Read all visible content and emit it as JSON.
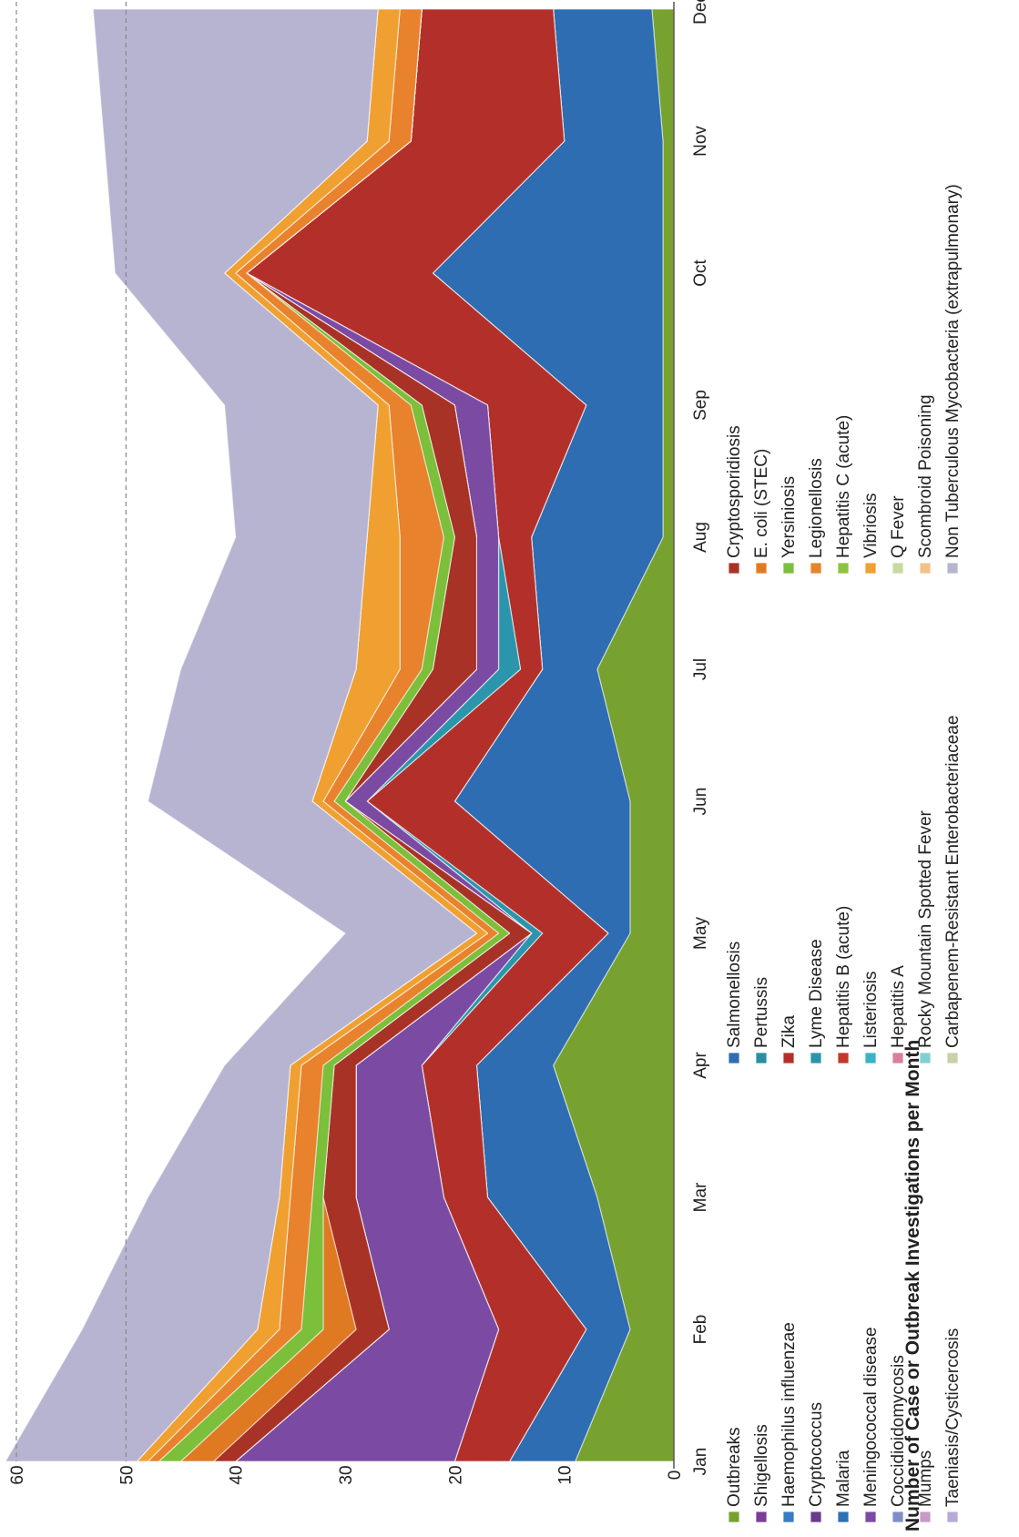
{
  "chart_data": {
    "type": "area",
    "stacked": true,
    "orientation": "rotated-90-clockwise",
    "title": "",
    "ylabel": "Number of Case or Outbreak Investigations per Month",
    "xlabel": "",
    "categories": [
      "Jan",
      "Feb",
      "Mar",
      "Apr",
      "May",
      "Jun",
      "Jul",
      "Aug",
      "Sep",
      "Oct",
      "Nov",
      "Dec"
    ],
    "ylim": [
      0,
      60
    ],
    "yticks": [
      0,
      10,
      20,
      30,
      40,
      50,
      60
    ],
    "gridlines": {
      "style": "dashed",
      "values": [
        50,
        60
      ]
    },
    "legend_position": "bottom",
    "series": [
      {
        "name": "Outbreaks",
        "color": "#78a22f",
        "values": [
          9,
          4,
          7,
          11,
          4,
          4,
          7,
          1,
          1,
          1,
          1,
          2
        ]
      },
      {
        "name": "Salmonellosis",
        "color": "#2e6db2",
        "values": [
          6,
          4,
          10,
          7,
          2,
          16,
          5,
          12,
          7,
          21,
          9,
          9
        ]
      },
      {
        "name": "Shigellosis",
        "color": "#7a3d96",
        "values": [
          0,
          0,
          0,
          0,
          0,
          0,
          0,
          0,
          0,
          0,
          0,
          0
        ]
      },
      {
        "name": "Pertussis",
        "color": "#2a8fa0",
        "values": [
          0,
          0,
          0,
          0,
          0,
          0,
          0,
          0,
          0,
          0,
          0,
          0
        ]
      },
      {
        "name": "Haemophilus influenzae",
        "color": "#3a7cc4",
        "values": [
          0,
          0,
          0,
          0,
          0,
          0,
          0,
          0,
          0,
          0,
          0,
          0
        ]
      },
      {
        "name": "Zika",
        "color": "#b3302a",
        "values": [
          5,
          8,
          4,
          5,
          6,
          8,
          2,
          3,
          9,
          17,
          14,
          12
        ]
      },
      {
        "name": "Cryptococcus",
        "color": "#6a3b8c",
        "values": [
          0,
          0,
          0,
          0,
          0,
          0,
          0,
          0,
          0,
          0,
          0,
          0
        ]
      },
      {
        "name": "Lyme Disease",
        "color": "#2a95ab",
        "values": [
          0,
          0,
          0,
          0,
          1,
          0,
          2,
          0,
          0,
          0,
          0,
          0
        ]
      },
      {
        "name": "Malaria",
        "color": "#2f6fb8",
        "values": [
          0,
          0,
          0,
          0,
          0,
          0,
          0,
          0,
          0,
          0,
          0,
          0
        ]
      },
      {
        "name": "Hepatitis B (acute)",
        "color": "#c0392b",
        "values": [
          0,
          0,
          0,
          0,
          0,
          0,
          0,
          0,
          0,
          0,
          0,
          0
        ]
      },
      {
        "name": "Meningococcal disease",
        "color": "#7b4aa3",
        "values": [
          20,
          10,
          8,
          6,
          0,
          2,
          2,
          2,
          3,
          0,
          0,
          0
        ]
      },
      {
        "name": "Listeriosis",
        "color": "#3ab3c6",
        "values": [
          0,
          0,
          0,
          0,
          0,
          0,
          0,
          0,
          0,
          0,
          0,
          0
        ]
      },
      {
        "name": "Coccidioidomycosis",
        "color": "#7e8fc8",
        "values": [
          0,
          0,
          0,
          0,
          0,
          0,
          0,
          0,
          0,
          0,
          0,
          0
        ]
      },
      {
        "name": "Hepatitis A",
        "color": "#d97f98",
        "values": [
          0,
          0,
          0,
          0,
          0,
          0,
          0,
          0,
          0,
          0,
          0,
          0
        ]
      },
      {
        "name": "Mumps",
        "color": "#c79ac9",
        "values": [
          0,
          0,
          0,
          0,
          0,
          0,
          0,
          0,
          0,
          0,
          0,
          0
        ]
      },
      {
        "name": "Rocky Mountain Spotted Fever",
        "color": "#7fd0d6",
        "values": [
          0,
          0,
          0,
          0,
          0,
          0,
          0,
          0,
          0,
          0,
          0,
          0
        ]
      },
      {
        "name": "Taeniasis/Cysticercosis",
        "color": "#b8a9d6",
        "values": [
          0,
          0,
          0,
          0,
          0,
          0,
          0,
          0,
          0,
          0,
          0,
          0
        ]
      },
      {
        "name": "Carbapenem-Resistant Enterobacteriaceae",
        "color": "#c7d2a8",
        "values": [
          0,
          0,
          0,
          0,
          0,
          0,
          0,
          0,
          0,
          0,
          0,
          0
        ]
      },
      {
        "name": "Cryptosporidiosis",
        "color": "#a83226",
        "values": [
          2,
          3,
          3,
          2,
          2,
          0,
          4,
          2,
          3,
          0,
          0,
          0
        ]
      },
      {
        "name": "E. coli (STEC)",
        "color": "#e07a22",
        "values": [
          3,
          3,
          0,
          0,
          0,
          0,
          0,
          0,
          0,
          0,
          0,
          0
        ]
      },
      {
        "name": "Yersiniosis",
        "color": "#7bbf3a",
        "values": [
          2,
          2,
          1,
          1,
          1,
          1,
          1,
          1,
          1,
          0,
          0,
          0
        ]
      },
      {
        "name": "Legionellosis",
        "color": "#e8822c",
        "values": [
          1,
          2,
          2,
          2,
          1,
          1,
          2,
          4,
          2,
          1,
          2,
          2
        ]
      },
      {
        "name": "Hepatitis C (acute)",
        "color": "#8cc43f",
        "values": [
          0,
          0,
          0,
          0,
          0,
          0,
          0,
          0,
          0,
          0,
          0,
          0
        ]
      },
      {
        "name": "Vibriosis",
        "color": "#f0a030",
        "values": [
          1,
          2,
          1,
          1,
          1,
          1,
          4,
          3,
          1,
          1,
          2,
          2
        ]
      },
      {
        "name": "Q Fever",
        "color": "#c9d8a0",
        "values": [
          0,
          0,
          0,
          0,
          0,
          0,
          0,
          0,
          0,
          0,
          0,
          0
        ]
      },
      {
        "name": "Scombroid Poisoning",
        "color": "#f4c08a",
        "values": [
          0,
          0,
          0,
          0,
          0,
          0,
          0,
          0,
          0,
          0,
          0,
          0
        ]
      },
      {
        "name": "Non Tuberculous Mycobacteria (extrapulmonary)",
        "color": "#b7b4d2",
        "values": [
          12,
          16,
          12,
          6,
          12,
          15,
          16,
          12,
          14,
          10,
          24,
          26
        ]
      }
    ]
  }
}
